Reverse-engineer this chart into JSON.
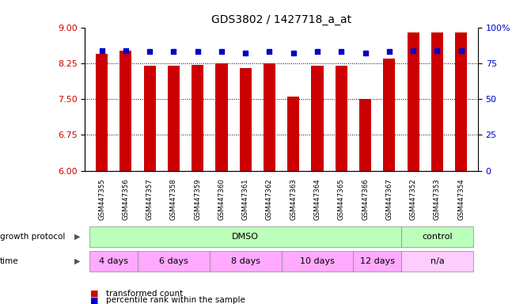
{
  "title": "GDS3802 / 1427718_a_at",
  "samples": [
    "GSM447355",
    "GSM447356",
    "GSM447357",
    "GSM447358",
    "GSM447359",
    "GSM447360",
    "GSM447361",
    "GSM447362",
    "GSM447363",
    "GSM447364",
    "GSM447365",
    "GSM447366",
    "GSM447367",
    "GSM447352",
    "GSM447353",
    "GSM447354"
  ],
  "bar_values": [
    8.45,
    8.52,
    8.19,
    8.2,
    8.22,
    8.25,
    8.15,
    8.25,
    7.55,
    8.19,
    8.19,
    7.5,
    8.35,
    8.9,
    8.9,
    8.9
  ],
  "percentile_values": [
    84,
    84,
    83,
    83,
    83,
    83,
    82,
    83,
    82,
    83,
    83,
    82,
    83,
    84,
    84,
    84
  ],
  "bar_color": "#cc0000",
  "percentile_color": "#0000cc",
  "ylim_left": [
    6,
    9
  ],
  "ylim_right": [
    0,
    100
  ],
  "yticks_left": [
    6,
    6.75,
    7.5,
    8.25,
    9
  ],
  "yticks_right": [
    0,
    25,
    50,
    75,
    100
  ],
  "grid_values": [
    6.75,
    7.5,
    8.25
  ],
  "background_color": "#ffffff",
  "tick_label_color_left": "#cc0000",
  "tick_label_color_right": "#0000cc",
  "bar_width": 0.5,
  "base_value": 6,
  "xlim": [
    -0.7,
    15.7
  ],
  "dmso_color": "#bbffbb",
  "control_color": "#bbffbb",
  "time_color": "#ffaaff",
  "na_color": "#ffccff",
  "xticklabel_bg": "#dddddd",
  "growth_label": "growth protocol",
  "time_label": "time",
  "legend_bar_label": "transformed count",
  "legend_pct_label": "percentile rank within the sample",
  "time_groups": [
    {
      "label": "4 days",
      "xstart": -0.5,
      "xend": 1.5
    },
    {
      "label": "6 days",
      "xstart": 1.5,
      "xend": 4.5
    },
    {
      "label": "8 days",
      "xstart": 4.5,
      "xend": 7.5
    },
    {
      "label": "10 days",
      "xstart": 7.5,
      "xend": 10.5
    },
    {
      "label": "12 days",
      "xstart": 10.5,
      "xend": 12.5
    },
    {
      "label": "n/a",
      "xstart": 12.5,
      "xend": 15.5
    }
  ]
}
